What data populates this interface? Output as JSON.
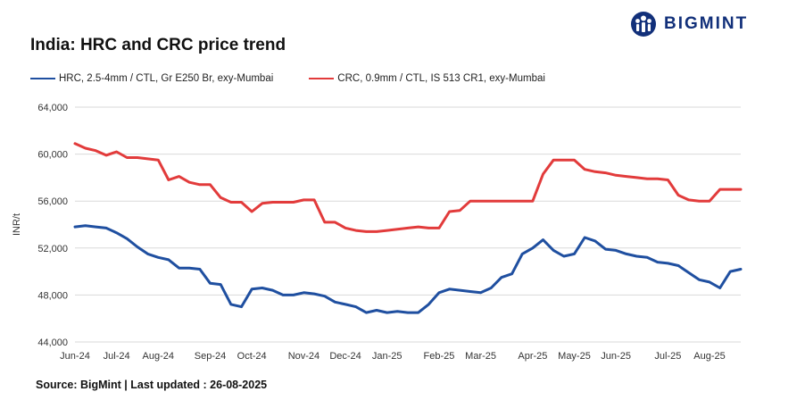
{
  "brand": {
    "name": "BIGMINT",
    "color": "#12307a"
  },
  "source": "Source: BigMint | Last updated : 26-08-2025",
  "chart_data": {
    "type": "line",
    "title": "India: HRC and CRC price trend",
    "xlabel": "",
    "ylabel": "INR/t",
    "ylim": [
      44000,
      64000
    ],
    "yticks": [
      "44,000",
      "48,000",
      "52,000",
      "56,000",
      "60,000",
      "64,000"
    ],
    "ytick_values": [
      44000,
      48000,
      52000,
      56000,
      60000,
      64000
    ],
    "grid": true,
    "legend_position": "top-left",
    "x_tick_labels": [
      "Jun-24",
      "Jul-24",
      "Aug-24",
      "Sep-24",
      "Oct-24",
      "Nov-24",
      "Dec-24",
      "Jan-25",
      "Feb-25",
      "Mar-25",
      "Apr-25",
      "May-25",
      "Jun-25",
      "Jul-25",
      "Aug-25"
    ],
    "x_tick_index": [
      0,
      4,
      8,
      13,
      17,
      22,
      26,
      30,
      35,
      39,
      44,
      48,
      52,
      57,
      61
    ],
    "x_count": 65,
    "series": [
      {
        "name": "HRC, 2.5-4mm / CTL, Gr E250 Br, exy-Mumbai",
        "color": "#1f4fa0",
        "values": [
          53800,
          53900,
          53800,
          53700,
          53300,
          52800,
          52100,
          51500,
          51200,
          51000,
          50300,
          50300,
          50200,
          49000,
          48900,
          47200,
          47000,
          48500,
          48600,
          48400,
          48000,
          48000,
          48200,
          48100,
          47900,
          47400,
          47200,
          47000,
          46500,
          46700,
          46500,
          46600,
          46500,
          46500,
          47200,
          48200,
          48500,
          48400,
          48300,
          48200,
          48600,
          49500,
          49800,
          51500,
          52000,
          52700,
          51800,
          51300,
          51500,
          52900,
          52600,
          51900,
          51800,
          51500,
          51300,
          51200,
          50800,
          50700,
          50500,
          49900,
          49300,
          49100,
          48600,
          50000,
          50200
        ]
      },
      {
        "name": "CRC, 0.9mm / CTL, IS 513 CR1, exy-Mumbai",
        "color": "#e23b3b",
        "values": [
          60900,
          60500,
          60300,
          59900,
          60200,
          59700,
          59700,
          59600,
          59500,
          57800,
          58100,
          57600,
          57400,
          57400,
          56300,
          55900,
          55900,
          55100,
          55800,
          55900,
          55900,
          55900,
          56100,
          56100,
          54200,
          54200,
          53700,
          53500,
          53400,
          53400,
          53500,
          53600,
          53700,
          53800,
          53700,
          53700,
          55100,
          55200,
          56000,
          56000,
          56000,
          56000,
          56000,
          56000,
          56000,
          58300,
          59500,
          59500,
          59500,
          58700,
          58500,
          58400,
          58200,
          58100,
          58000,
          57900,
          57900,
          57800,
          56500,
          56100,
          56000,
          56000,
          57000,
          57000,
          57000
        ]
      }
    ]
  }
}
